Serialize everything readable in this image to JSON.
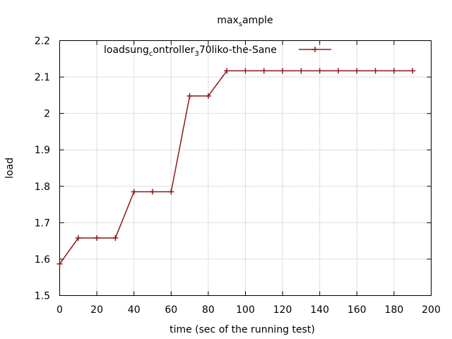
{
  "chart_data": {
    "type": "line",
    "title": {
      "parts": [
        {
          "text": "max",
          "sub": false
        },
        {
          "text": "s",
          "sub": true
        },
        {
          "text": "ample",
          "sub": false
        }
      ]
    },
    "xlabel": "time (sec of the running test)",
    "ylabel": "load",
    "xlim": [
      0,
      200
    ],
    "ylim": [
      1.5,
      2.2
    ],
    "xticks": [
      0,
      20,
      40,
      60,
      80,
      100,
      120,
      140,
      160,
      180,
      200
    ],
    "yticks": [
      1.5,
      1.6,
      1.7,
      1.8,
      1.9,
      2,
      2.1,
      2.2
    ],
    "grid": true,
    "legend_position": "top-right",
    "series": [
      {
        "name": {
          "parts": [
            {
              "text": "load",
              "sub": false
            },
            {
              "text": "s",
              "sub": false
            },
            {
              "text": "ung",
              "sub": false
            },
            {
              "text": "c",
              "sub": true
            },
            {
              "text": "ontroller",
              "sub": false
            },
            {
              "text": "3",
              "sub": true
            },
            {
              "text": "7",
              "sub": false
            },
            {
              "text": "0",
              "sub": false
            },
            {
              "text": "liko-the-Sane",
              "sub": false
            }
          ]
        },
        "color": "#8b1a1a",
        "marker": "plus",
        "x": [
          0,
          10,
          20,
          30,
          40,
          50,
          60,
          70,
          80,
          90,
          100,
          110,
          120,
          130,
          140,
          150,
          160,
          170,
          180,
          190
        ],
        "y": [
          1.587,
          1.658,
          1.658,
          1.658,
          1.785,
          1.785,
          1.785,
          2.048,
          2.048,
          2.117,
          2.117,
          2.117,
          2.117,
          2.117,
          2.117,
          2.117,
          2.117,
          2.117,
          2.117,
          2.117
        ]
      }
    ]
  }
}
